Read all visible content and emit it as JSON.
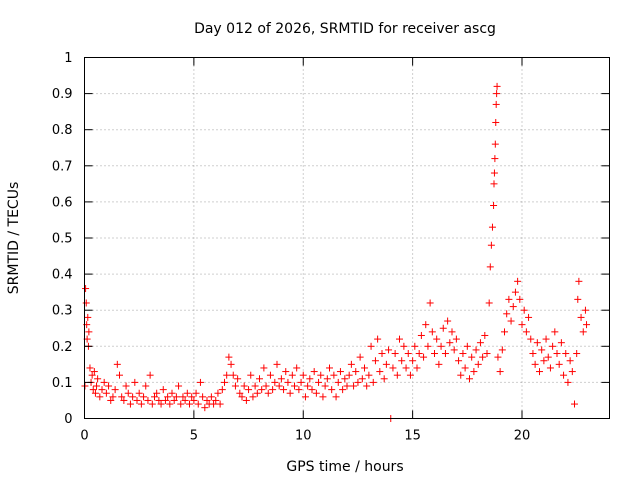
{
  "chart_data": {
    "type": "scatter",
    "title": "Day 012 of 2026, SRMTID for receiver ascg",
    "xlabel": "GPS time / hours",
    "ylabel": "SRMTID / TECUs",
    "xlim": [
      0,
      24
    ],
    "ylim": [
      0,
      1
    ],
    "x_ticks": [
      0,
      5,
      10,
      15,
      20
    ],
    "x_tick_labels": [
      "0",
      "5",
      "10",
      "15",
      "20"
    ],
    "y_ticks": [
      0,
      0.1,
      0.2,
      0.3,
      0.4,
      0.5,
      0.6,
      0.7,
      0.8,
      0.9,
      1
    ],
    "y_tick_labels": [
      "0",
      "0.1",
      "0.2",
      "0.3",
      "0.4",
      "0.5",
      "0.6",
      "0.7",
      "0.8",
      "0.9",
      "1"
    ],
    "grid": true,
    "marker": "plus",
    "color": "#ff0000",
    "series": [
      {
        "name": "SRMTID",
        "points": [
          [
            0.02,
            0.09
          ],
          [
            0.05,
            0.36
          ],
          [
            0.08,
            0.32
          ],
          [
            0.1,
            0.26
          ],
          [
            0.12,
            0.22
          ],
          [
            0.15,
            0.28
          ],
          [
            0.18,
            0.2
          ],
          [
            0.2,
            0.24
          ],
          [
            0.25,
            0.14
          ],
          [
            0.3,
            0.1
          ],
          [
            0.35,
            0.12
          ],
          [
            0.4,
            0.08
          ],
          [
            0.45,
            0.13
          ],
          [
            0.5,
            0.07
          ],
          [
            0.55,
            0.09
          ],
          [
            0.6,
            0.11
          ],
          [
            0.7,
            0.06
          ],
          [
            0.8,
            0.08
          ],
          [
            0.9,
            0.1
          ],
          [
            1.0,
            0.07
          ],
          [
            1.1,
            0.09
          ],
          [
            1.2,
            0.05
          ],
          [
            1.3,
            0.06
          ],
          [
            1.4,
            0.08
          ],
          [
            1.5,
            0.15
          ],
          [
            1.6,
            0.12
          ],
          [
            1.7,
            0.06
          ],
          [
            1.8,
            0.05
          ],
          [
            1.9,
            0.09
          ],
          [
            2.0,
            0.07
          ],
          [
            2.1,
            0.04
          ],
          [
            2.2,
            0.06
          ],
          [
            2.3,
            0.1
          ],
          [
            2.4,
            0.05
          ],
          [
            2.5,
            0.07
          ],
          [
            2.6,
            0.04
          ],
          [
            2.7,
            0.06
          ],
          [
            2.8,
            0.09
          ],
          [
            2.9,
            0.05
          ],
          [
            3.0,
            0.12
          ],
          [
            3.1,
            0.04
          ],
          [
            3.2,
            0.06
          ],
          [
            3.3,
            0.07
          ],
          [
            3.4,
            0.05
          ],
          [
            3.5,
            0.04
          ],
          [
            3.6,
            0.08
          ],
          [
            3.7,
            0.05
          ],
          [
            3.8,
            0.06
          ],
          [
            3.9,
            0.04
          ],
          [
            4.0,
            0.07
          ],
          [
            4.1,
            0.05
          ],
          [
            4.2,
            0.06
          ],
          [
            4.3,
            0.09
          ],
          [
            4.4,
            0.04
          ],
          [
            4.5,
            0.06
          ],
          [
            4.6,
            0.05
          ],
          [
            4.7,
            0.07
          ],
          [
            4.8,
            0.04
          ],
          [
            4.9,
            0.06
          ],
          [
            5.0,
            0.05
          ],
          [
            5.1,
            0.07
          ],
          [
            5.2,
            0.04
          ],
          [
            5.3,
            0.1
          ],
          [
            5.4,
            0.06
          ],
          [
            5.5,
            0.03
          ],
          [
            5.6,
            0.05
          ],
          [
            5.7,
            0.04
          ],
          [
            5.8,
            0.06
          ],
          [
            5.9,
            0.04
          ],
          [
            6.0,
            0.05
          ],
          [
            6.1,
            0.07
          ],
          [
            6.2,
            0.04
          ],
          [
            6.3,
            0.08
          ],
          [
            6.4,
            0.1
          ],
          [
            6.5,
            0.12
          ],
          [
            6.6,
            0.17
          ],
          [
            6.7,
            0.15
          ],
          [
            6.8,
            0.12
          ],
          [
            6.9,
            0.09
          ],
          [
            7.0,
            0.11
          ],
          [
            7.1,
            0.07
          ],
          [
            7.2,
            0.06
          ],
          [
            7.3,
            0.09
          ],
          [
            7.4,
            0.05
          ],
          [
            7.5,
            0.08
          ],
          [
            7.6,
            0.12
          ],
          [
            7.7,
            0.06
          ],
          [
            7.8,
            0.09
          ],
          [
            7.9,
            0.07
          ],
          [
            8.0,
            0.11
          ],
          [
            8.1,
            0.08
          ],
          [
            8.2,
            0.14
          ],
          [
            8.3,
            0.09
          ],
          [
            8.4,
            0.07
          ],
          [
            8.5,
            0.12
          ],
          [
            8.6,
            0.08
          ],
          [
            8.7,
            0.1
          ],
          [
            8.8,
            0.15
          ],
          [
            8.9,
            0.09
          ],
          [
            9.0,
            0.11
          ],
          [
            9.1,
            0.08
          ],
          [
            9.2,
            0.13
          ],
          [
            9.3,
            0.1
          ],
          [
            9.4,
            0.07
          ],
          [
            9.5,
            0.12
          ],
          [
            9.6,
            0.09
          ],
          [
            9.7,
            0.14
          ],
          [
            9.8,
            0.08
          ],
          [
            9.9,
            0.1
          ],
          [
            10.0,
            0.12
          ],
          [
            10.1,
            0.06
          ],
          [
            10.2,
            0.09
          ],
          [
            10.3,
            0.11
          ],
          [
            10.4,
            0.08
          ],
          [
            10.5,
            0.13
          ],
          [
            10.6,
            0.07
          ],
          [
            10.7,
            0.1
          ],
          [
            10.8,
            0.12
          ],
          [
            10.9,
            0.06
          ],
          [
            11.0,
            0.09
          ],
          [
            11.1,
            0.11
          ],
          [
            11.2,
            0.14
          ],
          [
            11.3,
            0.08
          ],
          [
            11.4,
            0.12
          ],
          [
            11.5,
            0.06
          ],
          [
            11.6,
            0.1
          ],
          [
            11.7,
            0.13
          ],
          [
            11.8,
            0.08
          ],
          [
            11.9,
            0.11
          ],
          [
            12.0,
            0.09
          ],
          [
            12.1,
            0.12
          ],
          [
            12.2,
            0.15
          ],
          [
            12.3,
            0.09
          ],
          [
            12.4,
            0.13
          ],
          [
            12.5,
            0.1
          ],
          [
            12.6,
            0.17
          ],
          [
            12.7,
            0.11
          ],
          [
            12.8,
            0.14
          ],
          [
            12.9,
            0.09
          ],
          [
            13.0,
            0.12
          ],
          [
            13.1,
            0.2
          ],
          [
            13.2,
            0.1
          ],
          [
            13.3,
            0.16
          ],
          [
            13.4,
            0.22
          ],
          [
            13.5,
            0.13
          ],
          [
            13.6,
            0.18
          ],
          [
            13.7,
            0.11
          ],
          [
            13.8,
            0.15
          ],
          [
            13.9,
            0.19
          ],
          [
            14.0,
            0.0
          ],
          [
            14.1,
            0.14
          ],
          [
            14.2,
            0.18
          ],
          [
            14.3,
            0.12
          ],
          [
            14.4,
            0.22
          ],
          [
            14.5,
            0.16
          ],
          [
            14.6,
            0.2
          ],
          [
            14.7,
            0.14
          ],
          [
            14.8,
            0.18
          ],
          [
            14.9,
            0.12
          ],
          [
            15.0,
            0.16
          ],
          [
            15.1,
            0.2
          ],
          [
            15.2,
            0.14
          ],
          [
            15.3,
            0.18
          ],
          [
            15.4,
            0.23
          ],
          [
            15.5,
            0.17
          ],
          [
            15.6,
            0.26
          ],
          [
            15.7,
            0.2
          ],
          [
            15.8,
            0.32
          ],
          [
            15.9,
            0.24
          ],
          [
            16.0,
            0.18
          ],
          [
            16.1,
            0.22
          ],
          [
            16.2,
            0.15
          ],
          [
            16.3,
            0.2
          ],
          [
            16.4,
            0.25
          ],
          [
            16.5,
            0.18
          ],
          [
            16.6,
            0.27
          ],
          [
            16.7,
            0.21
          ],
          [
            16.8,
            0.24
          ],
          [
            16.9,
            0.19
          ],
          [
            17.0,
            0.22
          ],
          [
            17.1,
            0.16
          ],
          [
            17.2,
            0.12
          ],
          [
            17.3,
            0.18
          ],
          [
            17.4,
            0.14
          ],
          [
            17.5,
            0.2
          ],
          [
            17.6,
            0.11
          ],
          [
            17.7,
            0.17
          ],
          [
            17.8,
            0.13
          ],
          [
            17.9,
            0.19
          ],
          [
            18.0,
            0.15
          ],
          [
            18.1,
            0.21
          ],
          [
            18.2,
            0.17
          ],
          [
            18.3,
            0.23
          ],
          [
            18.4,
            0.18
          ],
          [
            18.5,
            0.32
          ],
          [
            18.55,
            0.42
          ],
          [
            18.6,
            0.48
          ],
          [
            18.65,
            0.53
          ],
          [
            18.7,
            0.59
          ],
          [
            18.72,
            0.65
          ],
          [
            18.74,
            0.68
          ],
          [
            18.76,
            0.72
          ],
          [
            18.78,
            0.76
          ],
          [
            18.8,
            0.82
          ],
          [
            18.82,
            0.87
          ],
          [
            18.84,
            0.9
          ],
          [
            18.86,
            0.92
          ],
          [
            18.9,
            0.17
          ],
          [
            19.0,
            0.13
          ],
          [
            19.1,
            0.19
          ],
          [
            19.2,
            0.24
          ],
          [
            19.3,
            0.29
          ],
          [
            19.4,
            0.33
          ],
          [
            19.5,
            0.27
          ],
          [
            19.6,
            0.31
          ],
          [
            19.7,
            0.35
          ],
          [
            19.8,
            0.38
          ],
          [
            19.9,
            0.33
          ],
          [
            20.0,
            0.26
          ],
          [
            20.1,
            0.3
          ],
          [
            20.2,
            0.24
          ],
          [
            20.3,
            0.28
          ],
          [
            20.4,
            0.22
          ],
          [
            20.5,
            0.18
          ],
          [
            20.6,
            0.15
          ],
          [
            20.7,
            0.21
          ],
          [
            20.8,
            0.13
          ],
          [
            20.9,
            0.19
          ],
          [
            21.0,
            0.16
          ],
          [
            21.1,
            0.22
          ],
          [
            21.2,
            0.17
          ],
          [
            21.3,
            0.14
          ],
          [
            21.4,
            0.2
          ],
          [
            21.5,
            0.24
          ],
          [
            21.6,
            0.18
          ],
          [
            21.7,
            0.15
          ],
          [
            21.8,
            0.21
          ],
          [
            21.9,
            0.12
          ],
          [
            22.0,
            0.18
          ],
          [
            22.1,
            0.1
          ],
          [
            22.2,
            0.16
          ],
          [
            22.3,
            0.13
          ],
          [
            22.4,
            0.04
          ],
          [
            22.5,
            0.18
          ],
          [
            22.55,
            0.33
          ],
          [
            22.6,
            0.38
          ],
          [
            22.7,
            0.28
          ],
          [
            22.8,
            0.24
          ],
          [
            22.9,
            0.3
          ],
          [
            22.95,
            0.26
          ]
        ]
      }
    ]
  }
}
